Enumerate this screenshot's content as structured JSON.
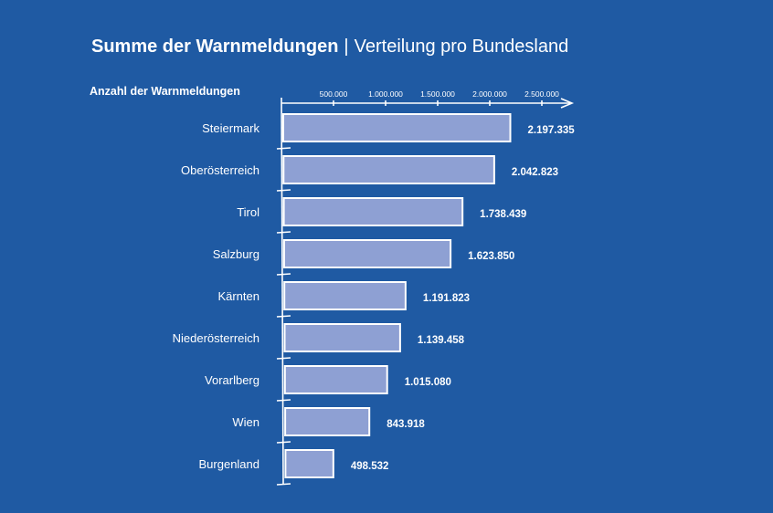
{
  "header": {
    "title_bold": "Summe der Warnmeldungen",
    "separator": "|",
    "title_rest": "Verteilung pro Bundesland"
  },
  "chart_data": {
    "type": "bar",
    "orientation": "horizontal",
    "ylabel": "Anzahl der Warnmeldungen",
    "categories": [
      "Steiermark",
      "Oberösterreich",
      "Tirol",
      "Salzburg",
      "Kärnten",
      "Niederösterreich",
      "Vorarlberg",
      "Wien",
      "Burgenland"
    ],
    "values": [
      2197335,
      2042823,
      1738439,
      1623850,
      1191823,
      1139458,
      1015080,
      843918,
      498532
    ],
    "value_labels": [
      "2.197.335",
      "2.042.823",
      "1.738.439",
      "1.623.850",
      "1.191.823",
      "1.139.458",
      "1.015.080",
      "843.918",
      "498.532"
    ],
    "ticks": [
      500000,
      1000000,
      1500000,
      2000000,
      2500000
    ],
    "tick_labels": [
      "500.000",
      "1.000.000",
      "1.500.000",
      "2.000.000",
      "2.500.000"
    ],
    "xlim": [
      0,
      2800000
    ],
    "colors": {
      "background": "#1f5aa3",
      "bar": "#8ea0d3",
      "outline": "#ffffff"
    }
  }
}
